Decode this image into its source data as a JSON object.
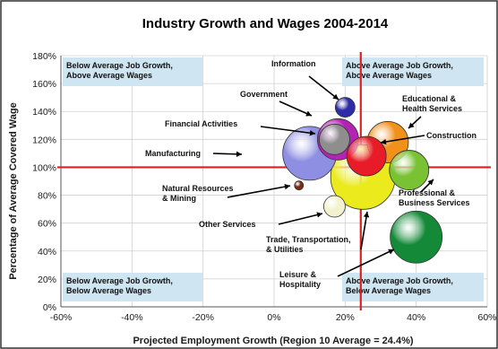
{
  "chart_data": {
    "type": "scatter",
    "subtype": "bubble",
    "title": "Industry Growth and Wages 2004-2014",
    "xlabel": "Projected Employment Growth (Region 10 Average = 24.4%)",
    "ylabel": "Percentage of Average Covered Wage",
    "xlim": [
      -60,
      60
    ],
    "ylim": [
      0,
      180
    ],
    "x_ticks": [
      "-60%",
      "-40%",
      "-20%",
      "0%",
      "20%",
      "40%",
      "60%"
    ],
    "y_ticks": [
      "0%",
      "20%",
      "40%",
      "60%",
      "80%",
      "100%",
      "120%",
      "140%",
      "160%",
      "180%"
    ],
    "grid": true,
    "reference_lines": [
      {
        "axis": "x",
        "value": 24.4,
        "color": "#e02020"
      },
      {
        "axis": "y",
        "value": 100,
        "color": "#e02020"
      }
    ],
    "quadrants": [
      {
        "lines": [
          "Below Average Job Growth,",
          "Above Average Wages"
        ],
        "position": "top-left"
      },
      {
        "lines": [
          "Above Average Job Growth,",
          "Above Average Wages"
        ],
        "position": "top-right"
      },
      {
        "lines": [
          "Below Average Job Growth,",
          "Below Average Wages"
        ],
        "position": "bottom-left"
      },
      {
        "lines": [
          "Above Average Job Growth,",
          "Below Average Wages"
        ],
        "position": "bottom-right"
      }
    ],
    "series": [
      {
        "name": "Trade, Transportation, & Utilities",
        "x": 25,
        "y": 93,
        "r": 36,
        "color": "#eaea1c",
        "label_lines": [
          "Trade, Transportation,",
          "& Utilities"
        ]
      },
      {
        "name": "Educational & Health Services",
        "x": 32,
        "y": 118,
        "r": 23,
        "color": "#f2901c",
        "label_lines": [
          "Educational &",
          "Health Services"
        ]
      },
      {
        "name": "Government",
        "x": 18,
        "y": 120,
        "r": 23,
        "color": "#b424b4",
        "label_lines": [
          "Government"
        ]
      },
      {
        "name": "Manufacturing",
        "x": 10,
        "y": 110,
        "r": 30,
        "color": "#8e8ee2",
        "label_lines": [
          "Manufacturing"
        ]
      },
      {
        "name": "Financial Activities",
        "x": 17,
        "y": 120,
        "r": 17,
        "color": "#8e8e8e",
        "label_lines": [
          "Financial Activities"
        ]
      },
      {
        "name": "Professional & Business Services",
        "x": 38,
        "y": 98,
        "r": 22,
        "color": "#78c234",
        "label_lines": [
          "Professional &",
          "Business Services"
        ]
      },
      {
        "name": "Construction",
        "x": 26,
        "y": 108,
        "r": 22,
        "color": "#e81c28",
        "label_lines": [
          "Construction"
        ]
      },
      {
        "name": "Information",
        "x": 20,
        "y": 143,
        "r": 11,
        "color": "#2c2ca6",
        "label_lines": [
          "Information"
        ]
      },
      {
        "name": "Leisure & Hospitality",
        "x": 40,
        "y": 50,
        "r": 29,
        "color": "#148a38",
        "label_lines": [
          "Leisure &",
          "Hospitality"
        ]
      },
      {
        "name": "Other Services",
        "x": 17,
        "y": 72,
        "r": 12,
        "color": "#f2f2d0",
        "label_lines": [
          "Other Services"
        ]
      },
      {
        "name": "Natural Resources & Mining",
        "x": 7,
        "y": 87,
        "r": 5,
        "color": "#7a2c10",
        "label_lines": [
          "Natural Resources",
          "& Mining"
        ]
      }
    ]
  }
}
